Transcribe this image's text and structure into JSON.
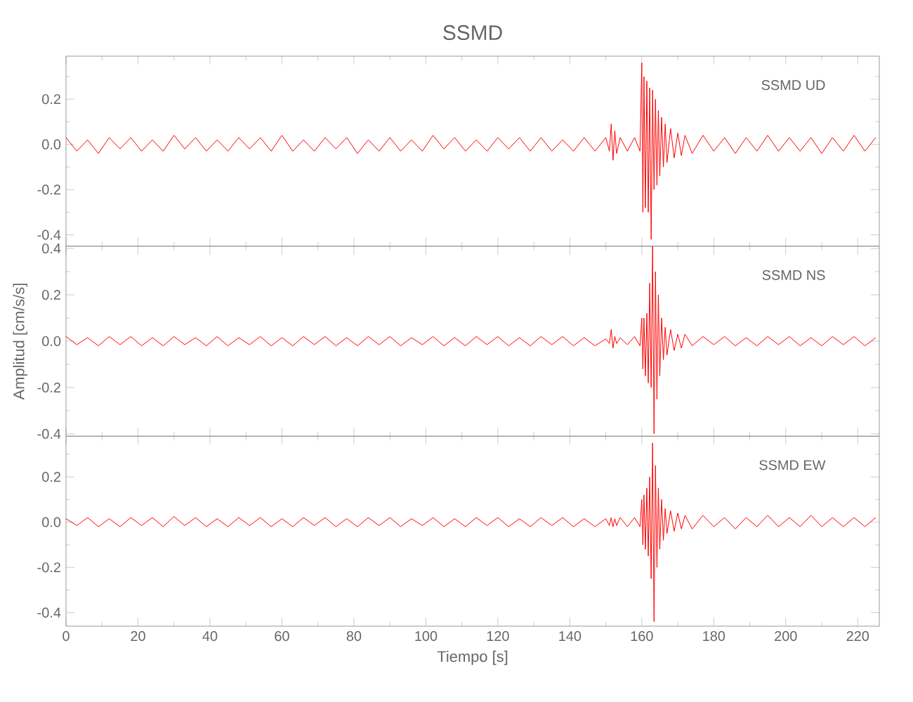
{
  "chart_data": [
    {
      "type": "line",
      "title": "SSMD",
      "annotations": [
        "SSMD UD"
      ],
      "color": "#ff0000",
      "tick_labels": "y",
      "xlim": [
        0,
        226
      ],
      "ylim": [
        -0.45,
        0.39
      ],
      "xticks": [
        0,
        {
          "value": 10,
          "label": null
        },
        20,
        {
          "value": 30,
          "label": null
        },
        40,
        {
          "value": 50,
          "label": null
        },
        60,
        {
          "value": 70,
          "label": null
        },
        80,
        {
          "value": 90,
          "label": null
        },
        100,
        {
          "value": 110,
          "label": null
        },
        120,
        {
          "value": 130,
          "label": null
        },
        140,
        {
          "value": 150,
          "label": null
        },
        160,
        {
          "value": 170,
          "label": null
        },
        180,
        {
          "value": 190,
          "label": null
        },
        200,
        {
          "value": 210,
          "label": null
        },
        220
      ],
      "yticks": [
        {
          "value": -0.4,
          "label": "-0.4"
        },
        {
          "value": -0.3,
          "label": null
        },
        {
          "value": -0.2,
          "label": "-0.2"
        },
        {
          "value": -0.1,
          "label": null
        },
        {
          "value": 0,
          "label": "0.0"
        },
        {
          "value": 0.1,
          "label": null
        },
        {
          "value": 0.2,
          "label": "0.2"
        },
        {
          "value": 0.3,
          "label": null
        }
      ],
      "x": [
        0,
        3,
        6,
        9,
        12,
        15,
        18,
        21,
        24,
        27,
        30,
        33,
        36,
        39,
        42,
        45,
        48,
        51,
        54,
        57,
        60,
        63,
        66,
        69,
        72,
        75,
        78,
        81,
        84,
        87,
        90,
        93,
        96,
        99,
        102,
        105,
        108,
        111,
        114,
        117,
        120,
        123,
        126,
        129,
        132,
        135,
        138,
        141,
        144,
        147,
        150,
        151,
        151.5,
        152,
        152.5,
        153,
        154,
        156,
        158,
        159.5,
        160,
        160.3,
        160.6,
        161,
        161.4,
        161.8,
        162.2,
        162.6,
        163,
        163.4,
        163.8,
        164.2,
        164.6,
        165,
        165.5,
        166,
        166.5,
        167,
        168,
        169,
        170,
        171,
        172,
        174,
        177,
        180,
        183,
        186,
        189,
        192,
        195,
        198,
        201,
        204,
        207,
        210,
        213,
        216,
        219,
        222,
        225
      ],
      "values": [
        0.03,
        -0.03,
        0.02,
        -0.04,
        0.03,
        -0.02,
        0.03,
        -0.03,
        0.02,
        -0.03,
        0.04,
        -0.02,
        0.03,
        -0.03,
        0.02,
        -0.03,
        0.03,
        -0.02,
        0.03,
        -0.03,
        0.04,
        -0.03,
        0.02,
        -0.03,
        0.03,
        -0.02,
        0.03,
        -0.04,
        0.02,
        -0.03,
        0.03,
        -0.03,
        0.02,
        -0.03,
        0.04,
        -0.02,
        0.03,
        -0.03,
        0.02,
        -0.03,
        0.03,
        -0.02,
        0.03,
        -0.03,
        0.03,
        -0.03,
        0.02,
        -0.03,
        0.03,
        -0.03,
        0.03,
        -0.03,
        0.09,
        -0.07,
        0.06,
        -0.04,
        0.03,
        -0.03,
        0.03,
        -0.03,
        0.36,
        -0.3,
        0.3,
        -0.28,
        0.28,
        -0.3,
        0.25,
        -0.42,
        0.24,
        -0.2,
        0.2,
        -0.18,
        0.15,
        -0.14,
        0.12,
        -0.1,
        0.09,
        -0.08,
        0.07,
        -0.06,
        0.05,
        -0.05,
        0.04,
        -0.04,
        0.04,
        -0.03,
        0.03,
        -0.04,
        0.03,
        -0.03,
        0.04,
        -0.03,
        0.03,
        -0.03,
        0.03,
        -0.04,
        0.03,
        -0.03,
        0.04,
        -0.03,
        0.03
      ]
    },
    {
      "type": "line",
      "ylabel": "Amplitud [cm/s/s]",
      "annotations": [
        "SSMD NS"
      ],
      "color": "#ff0000",
      "tick_labels": "y",
      "xlim": [
        0,
        226
      ],
      "ylim": [
        -0.41,
        0.41
      ],
      "xticks": [
        0,
        {
          "value": 10,
          "label": null
        },
        20,
        {
          "value": 30,
          "label": null
        },
        40,
        {
          "value": 50,
          "label": null
        },
        60,
        {
          "value": 70,
          "label": null
        },
        80,
        {
          "value": 90,
          "label": null
        },
        100,
        {
          "value": 110,
          "label": null
        },
        120,
        {
          "value": 130,
          "label": null
        },
        140,
        {
          "value": 150,
          "label": null
        },
        160,
        {
          "value": 170,
          "label": null
        },
        180,
        {
          "value": 190,
          "label": null
        },
        200,
        {
          "value": 210,
          "label": null
        },
        220
      ],
      "yticks": [
        {
          "value": -0.4,
          "label": "-0.4"
        },
        {
          "value": -0.3,
          "label": null
        },
        {
          "value": -0.2,
          "label": "-0.2"
        },
        {
          "value": -0.1,
          "label": null
        },
        {
          "value": 0,
          "label": "0.0"
        },
        {
          "value": 0.1,
          "label": null
        },
        {
          "value": 0.2,
          "label": "0.2"
        },
        {
          "value": 0.3,
          "label": null
        },
        {
          "value": 0.4,
          "label": "0.4"
        }
      ],
      "x": [
        0,
        3,
        6,
        9,
        12,
        15,
        18,
        21,
        24,
        27,
        30,
        33,
        36,
        39,
        42,
        45,
        48,
        51,
        54,
        57,
        60,
        63,
        66,
        69,
        72,
        75,
        78,
        81,
        84,
        87,
        90,
        93,
        96,
        99,
        102,
        105,
        108,
        111,
        114,
        117,
        120,
        123,
        126,
        129,
        132,
        135,
        138,
        141,
        144,
        147,
        150,
        151,
        151.5,
        152,
        152.5,
        153,
        154,
        156,
        158,
        159.5,
        160,
        160.3,
        160.6,
        161,
        161.4,
        161.8,
        162.2,
        162.6,
        163,
        163.4,
        163.8,
        164.2,
        164.6,
        165,
        165.5,
        166,
        166.5,
        167,
        168,
        169,
        170,
        171,
        172,
        174,
        177,
        180,
        183,
        186,
        189,
        192,
        195,
        198,
        201,
        204,
        207,
        210,
        213,
        216,
        219,
        222,
        225
      ],
      "values": [
        0.02,
        -0.015,
        0.015,
        -0.02,
        0.02,
        -0.015,
        0.02,
        -0.02,
        0.015,
        -0.02,
        0.02,
        -0.015,
        0.015,
        -0.02,
        0.02,
        -0.02,
        0.015,
        -0.015,
        0.02,
        -0.02,
        0.015,
        -0.02,
        0.02,
        -0.015,
        0.02,
        -0.02,
        0.015,
        -0.02,
        0.02,
        -0.015,
        0.02,
        -0.02,
        0.015,
        -0.015,
        0.02,
        -0.02,
        0.015,
        -0.02,
        0.02,
        -0.015,
        0.02,
        -0.02,
        0.015,
        -0.02,
        0.02,
        -0.015,
        0.02,
        -0.02,
        0.015,
        -0.02,
        0.01,
        -0.01,
        0.05,
        -0.03,
        0.02,
        -0.01,
        0.015,
        -0.015,
        0.02,
        -0.02,
        0.1,
        -0.12,
        0.1,
        -0.15,
        0.12,
        -0.18,
        0.25,
        -0.2,
        0.41,
        -0.4,
        0.3,
        -0.25,
        0.2,
        -0.15,
        0.1,
        -0.08,
        0.06,
        -0.06,
        0.05,
        -0.04,
        0.03,
        -0.03,
        0.03,
        -0.02,
        0.02,
        -0.015,
        0.02,
        -0.02,
        0.015,
        -0.02,
        0.02,
        -0.015,
        0.02,
        -0.02,
        0.015,
        -0.02,
        0.02,
        -0.015,
        0.02,
        -0.02,
        0.015
      ]
    },
    {
      "type": "line",
      "xlabel": "Tiempo [s]",
      "annotations": [
        "SSMD EW"
      ],
      "color": "#ff0000",
      "xlim": [
        0,
        226
      ],
      "ylim": [
        -0.46,
        0.38
      ],
      "xticks": [
        0,
        {
          "value": 10,
          "label": null
        },
        20,
        {
          "value": 30,
          "label": null
        },
        40,
        {
          "value": 50,
          "label": null
        },
        60,
        {
          "value": 70,
          "label": null
        },
        80,
        {
          "value": 90,
          "label": null
        },
        100,
        {
          "value": 110,
          "label": null
        },
        120,
        {
          "value": 130,
          "label": null
        },
        140,
        {
          "value": 150,
          "label": null
        },
        160,
        {
          "value": 170,
          "label": null
        },
        180,
        {
          "value": 190,
          "label": null
        },
        200,
        {
          "value": 210,
          "label": null
        },
        220
      ],
      "yticks": [
        {
          "value": -0.4,
          "label": "-0.4"
        },
        {
          "value": -0.3,
          "label": null
        },
        {
          "value": -0.2,
          "label": "-0.2"
        },
        {
          "value": -0.1,
          "label": null
        },
        {
          "value": 0,
          "label": "0.0"
        },
        {
          "value": 0.1,
          "label": null
        },
        {
          "value": 0.2,
          "label": "0.2"
        },
        {
          "value": 0.3,
          "label": null
        }
      ],
      "x": [
        0,
        3,
        6,
        9,
        12,
        15,
        18,
        21,
        24,
        27,
        30,
        33,
        36,
        39,
        42,
        45,
        48,
        51,
        54,
        57,
        60,
        63,
        66,
        69,
        72,
        75,
        78,
        81,
        84,
        87,
        90,
        93,
        96,
        99,
        102,
        105,
        108,
        111,
        114,
        117,
        120,
        123,
        126,
        129,
        132,
        135,
        138,
        141,
        144,
        147,
        150,
        151,
        151.5,
        152,
        152.5,
        153,
        154,
        156,
        158,
        159.5,
        160,
        160.3,
        160.6,
        161,
        161.4,
        161.8,
        162.2,
        162.6,
        163,
        163.4,
        163.8,
        164.2,
        164.6,
        165,
        165.5,
        166,
        166.5,
        167,
        168,
        169,
        170,
        171,
        172,
        174,
        177,
        180,
        183,
        186,
        189,
        192,
        195,
        198,
        201,
        204,
        207,
        210,
        213,
        216,
        219,
        222,
        225
      ],
      "values": [
        0.015,
        -0.015,
        0.02,
        -0.02,
        0.015,
        -0.02,
        0.02,
        -0.015,
        0.02,
        -0.02,
        0.025,
        -0.015,
        0.02,
        -0.02,
        0.015,
        -0.02,
        0.02,
        -0.015,
        0.02,
        -0.02,
        0.015,
        -0.02,
        0.02,
        -0.015,
        0.02,
        -0.02,
        0.015,
        -0.02,
        0.02,
        -0.015,
        0.02,
        -0.02,
        0.015,
        -0.015,
        0.02,
        -0.02,
        0.015,
        -0.02,
        0.02,
        -0.015,
        0.02,
        -0.02,
        0.015,
        -0.02,
        0.02,
        -0.015,
        0.02,
        -0.02,
        0.015,
        -0.02,
        0.015,
        -0.015,
        0.02,
        -0.02,
        0.015,
        -0.015,
        0.02,
        -0.02,
        0.02,
        -0.02,
        0.1,
        -0.1,
        0.12,
        -0.12,
        0.15,
        -0.15,
        0.2,
        -0.25,
        0.35,
        -0.44,
        0.25,
        -0.2,
        0.15,
        -0.12,
        0.1,
        -0.08,
        0.06,
        -0.05,
        0.05,
        -0.04,
        0.04,
        -0.03,
        0.03,
        -0.03,
        0.03,
        -0.02,
        0.02,
        -0.03,
        0.02,
        -0.02,
        0.03,
        -0.02,
        0.02,
        -0.02,
        0.03,
        -0.02,
        0.02,
        -0.02,
        0.02,
        -0.02,
        0.02
      ]
    }
  ]
}
